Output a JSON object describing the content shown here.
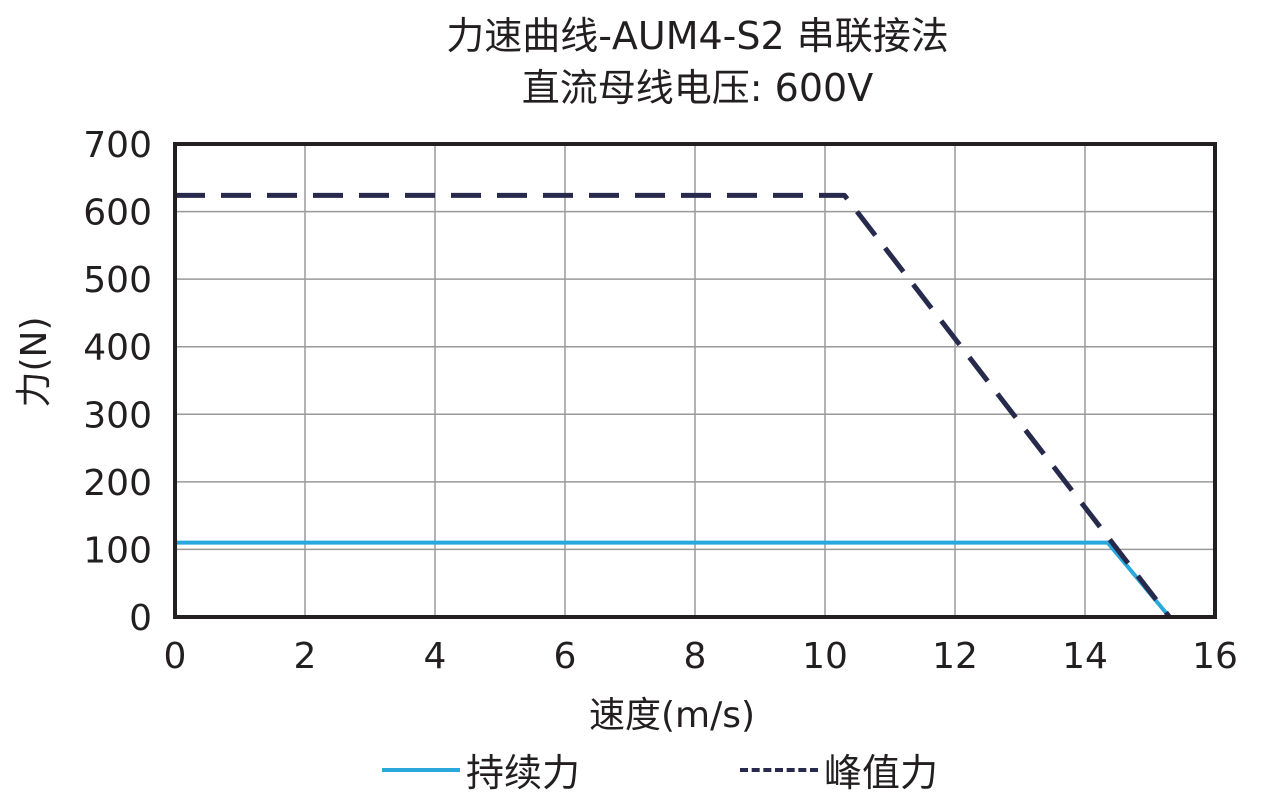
{
  "chart_data": {
    "type": "line",
    "title": "力速曲线-AUM4-S2 串联接法",
    "subtitle": "直流母线电压: 600V",
    "xlabel": "速度(m/s)",
    "ylabel": "力(N)",
    "xlim": [
      0,
      16
    ],
    "ylim": [
      0,
      700
    ],
    "xticks": [
      0,
      2,
      4,
      6,
      8,
      10,
      12,
      14,
      16
    ],
    "yticks": [
      0,
      100,
      200,
      300,
      400,
      500,
      600,
      700
    ],
    "grid": true,
    "legend_position": "bottom",
    "series": [
      {
        "name": "持续力",
        "style": "solid",
        "color": "#29a8dc",
        "x": [
          0,
          14.35,
          15.3
        ],
        "y": [
          110,
          110,
          0
        ]
      },
      {
        "name": "峰值力",
        "style": "dashed",
        "color": "#272a4c",
        "x": [
          0,
          10.3,
          15.3
        ],
        "y": [
          624,
          624,
          0
        ]
      }
    ]
  },
  "legend": {
    "continuous_label": "持续力",
    "peak_label": "峰值力"
  }
}
